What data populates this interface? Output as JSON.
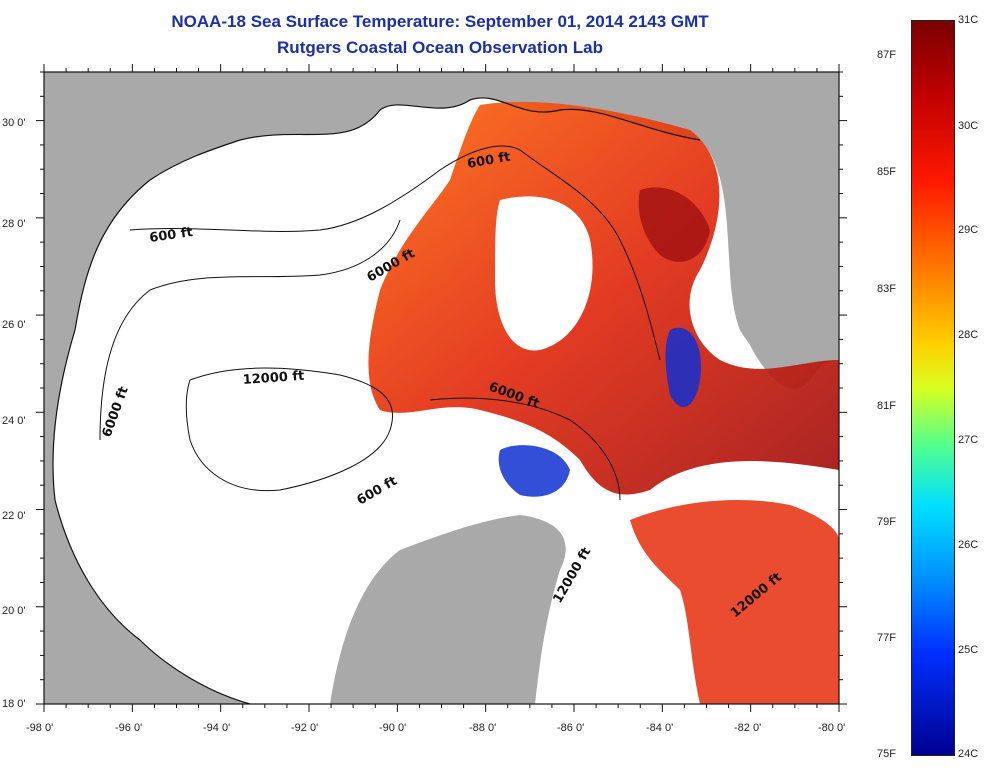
{
  "header": {
    "title": "NOAA-18 Sea Surface Temperature:  September 01, 2014 2143 GMT",
    "subtitle": "Rutgers Coastal Ocean Observation Lab"
  },
  "map": {
    "lon_labels": [
      "-98 0'",
      "-96 0'",
      "-94 0'",
      "-92 0'",
      "-90 0'",
      "-88 0'",
      "-86 0'",
      "-84 0'",
      "-82 0'",
      "-80 0'"
    ],
    "lat_labels": [
      "30 0'",
      "28 0'",
      "26 0'",
      "24 0'",
      "22 0'",
      "20 0'",
      "18 0'"
    ],
    "contour_labels": [
      "600 ft",
      "600 ft",
      "6000 ft",
      "6000 ft",
      "12000 ft",
      "600 ft",
      "6000 ft",
      "12000 ft",
      "12000 ft"
    ],
    "colors": {
      "land": "#a9a9a9",
      "ocean_nodata": "#ffffff",
      "warm": "#e02a10",
      "hot": "#a01010",
      "cool": "#1030d0"
    }
  },
  "colorbar": {
    "fahrenheit": [
      "87F",
      "85F",
      "83F",
      "81F",
      "79F",
      "77F",
      "75F"
    ],
    "celsius": [
      "31C",
      "30C",
      "29C",
      "28C",
      "27C",
      "26C",
      "25C",
      "24C"
    ]
  }
}
